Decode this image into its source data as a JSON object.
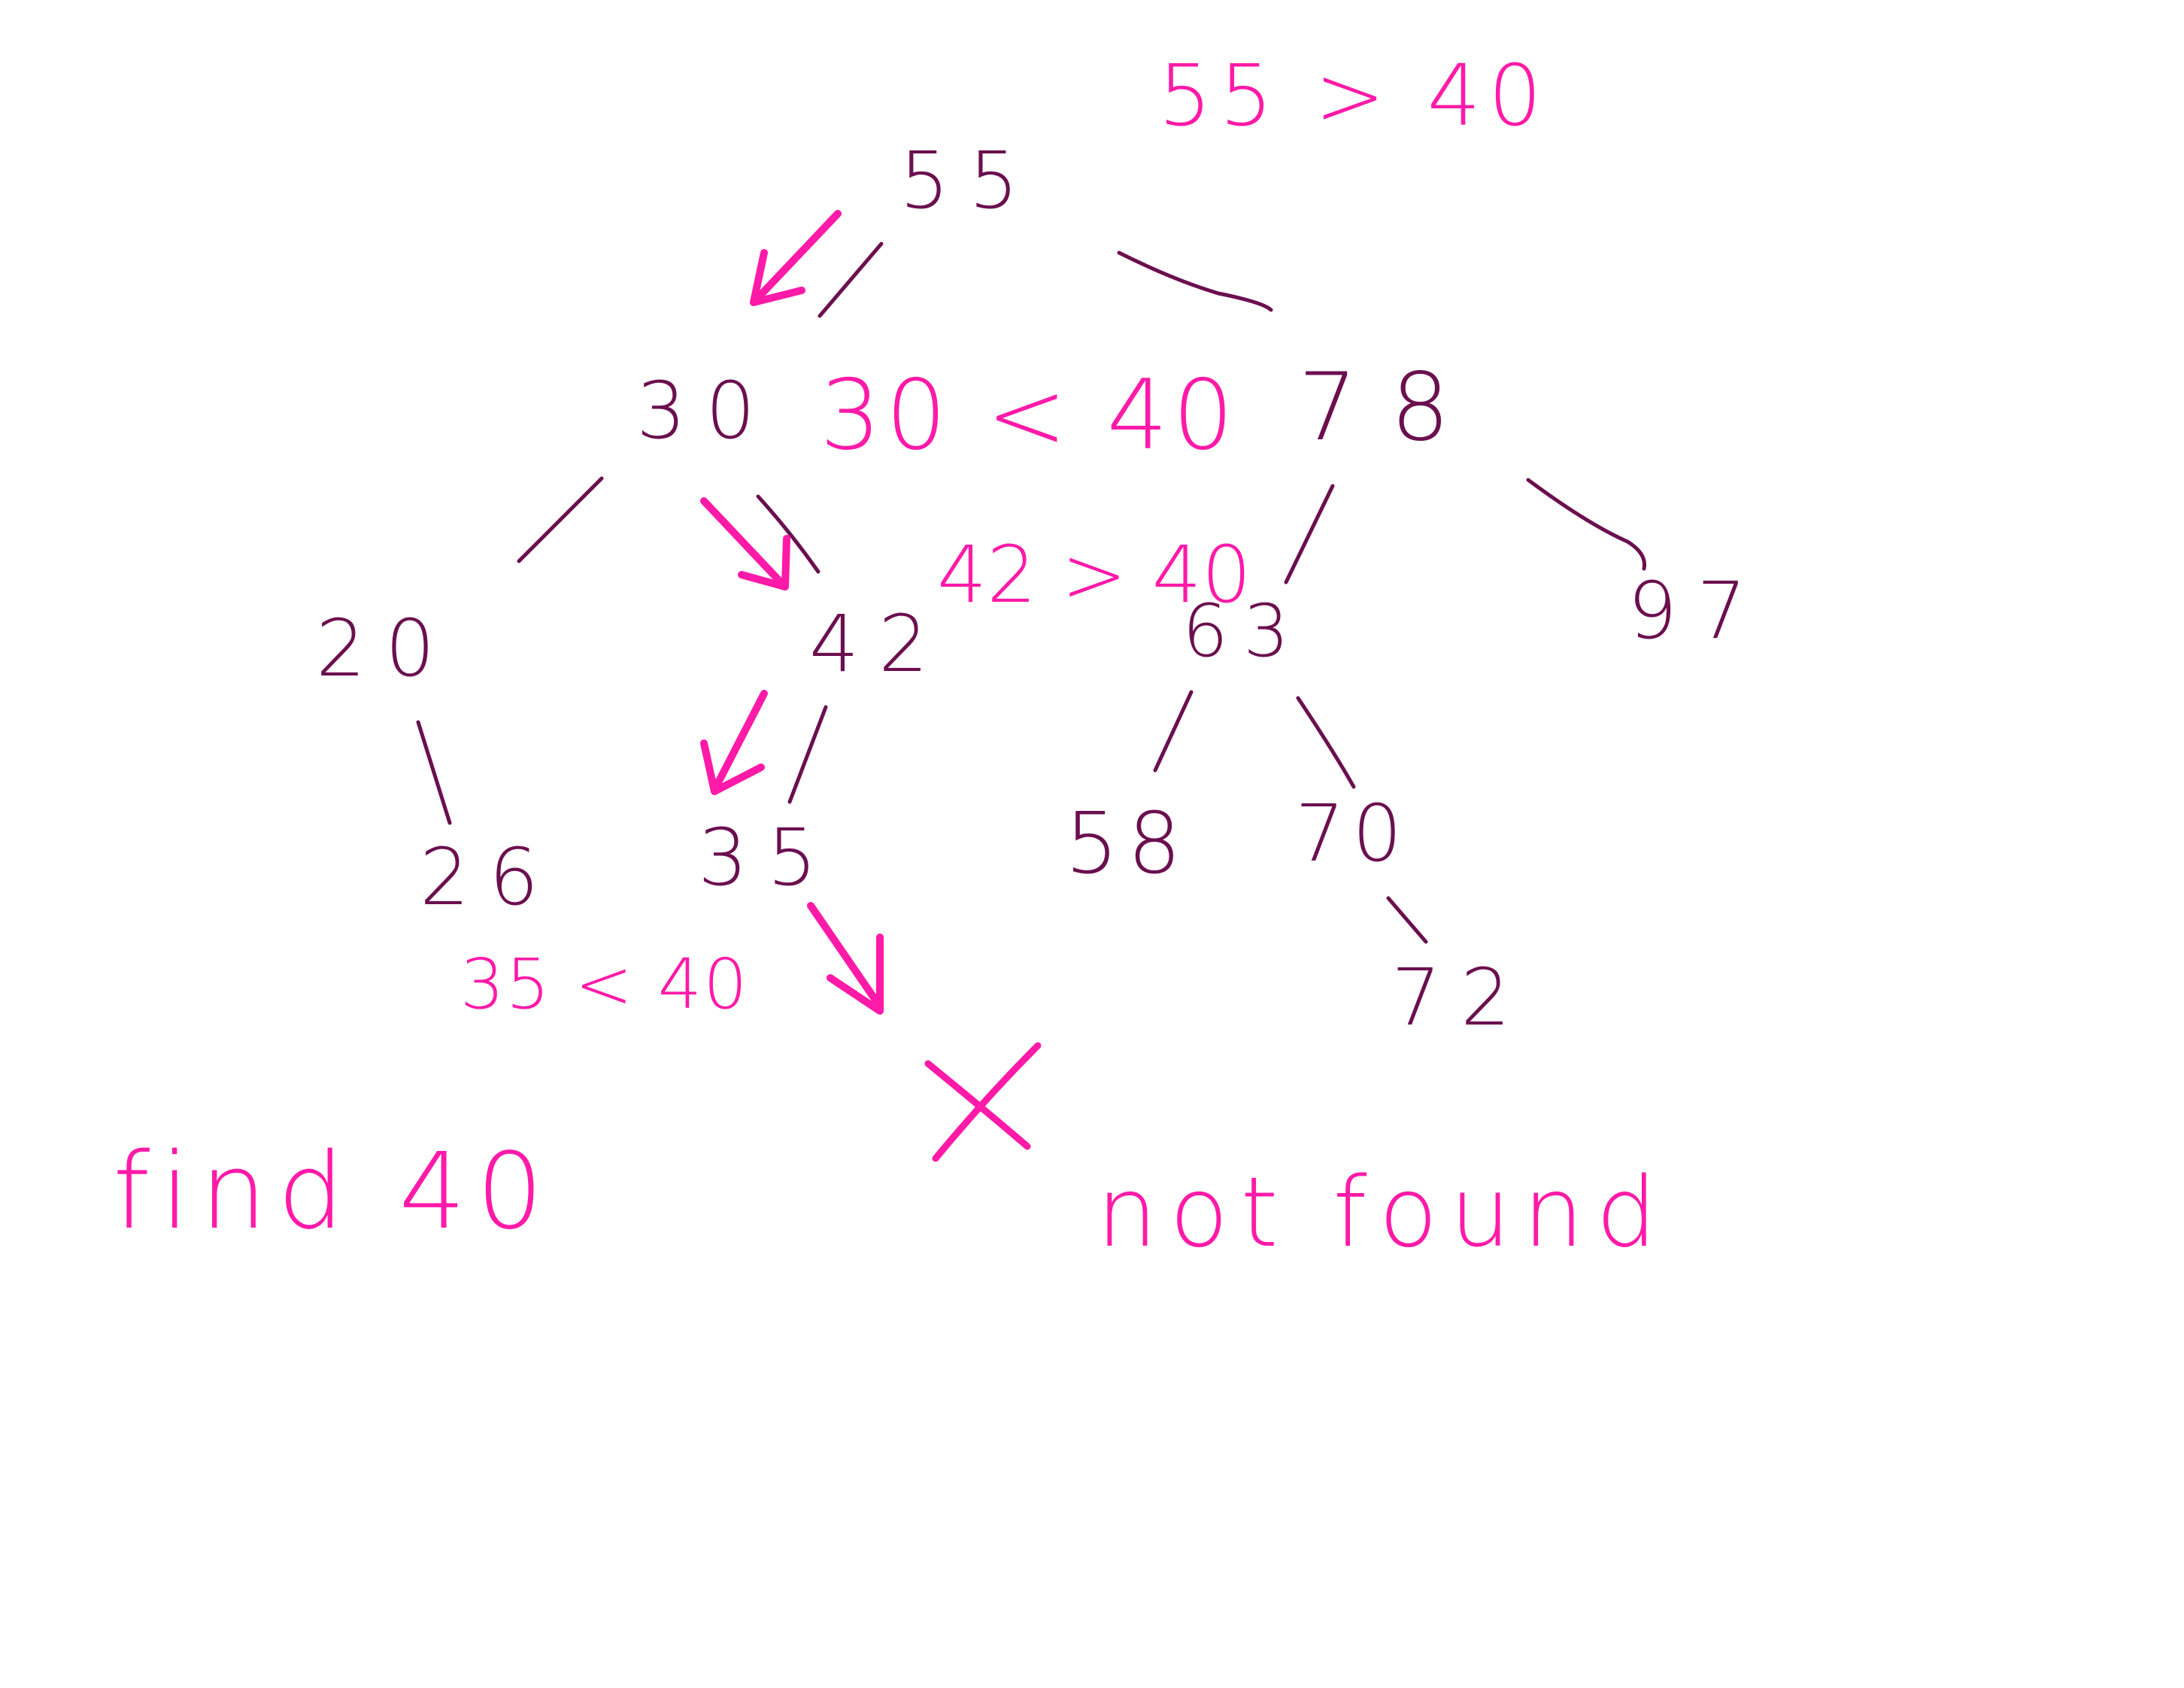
{
  "colors": {
    "tree": "#6b0f4f",
    "annotation": "#ff1aa8",
    "background": "#ffffff"
  },
  "tree": {
    "nodes": {
      "n55": "55",
      "n30": "30",
      "n78": "78",
      "n20": "20",
      "n42": "42",
      "n63": "63",
      "n97": "97",
      "n26": "26",
      "n35": "35",
      "n58": "58",
      "n70": "70",
      "n72": "72"
    }
  },
  "annotations": {
    "compare_root": "55 > 40",
    "compare_30": "30 < 40",
    "compare_42": "42 > 40",
    "compare_35": "35 < 40",
    "task": "find 40",
    "result": "not found",
    "cross_icon": "X"
  }
}
